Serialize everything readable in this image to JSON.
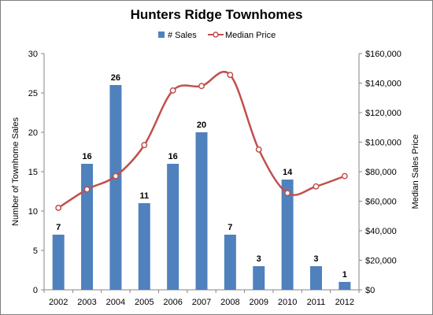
{
  "chart_data": {
    "type": "bar",
    "title": "Hunters Ridge Townhomes",
    "categories": [
      "2002",
      "2003",
      "2004",
      "2005",
      "2006",
      "2007",
      "2008",
      "2009",
      "2010",
      "2011",
      "2012"
    ],
    "series": [
      {
        "name": "# Sales",
        "type": "bar",
        "axis": "left",
        "color": "#4f81bd",
        "values": [
          7,
          16,
          26,
          11,
          16,
          20,
          7,
          3,
          14,
          3,
          1
        ]
      },
      {
        "name": "Median Price",
        "type": "line",
        "axis": "right",
        "smooth": true,
        "color": "#c0504d",
        "values": [
          55500,
          68000,
          77000,
          98000,
          135000,
          138000,
          145500,
          95000,
          65500,
          70000,
          77000
        ]
      }
    ],
    "y_left": {
      "label": "Number of Townhome Sales",
      "ylim": [
        0,
        30
      ],
      "ticks": [
        "0",
        "5",
        "10",
        "15",
        "20",
        "25",
        "30"
      ]
    },
    "y_right": {
      "label": "Median Sales Price",
      "ylim": [
        0,
        160000
      ],
      "ticks": [
        "$0",
        "$20,000",
        "$40,000",
        "$60,000",
        "$80,000",
        "$100,000",
        "$120,000",
        "$140,000",
        "$160,000"
      ]
    },
    "legend": {
      "position": "top-center"
    },
    "grid": false
  }
}
